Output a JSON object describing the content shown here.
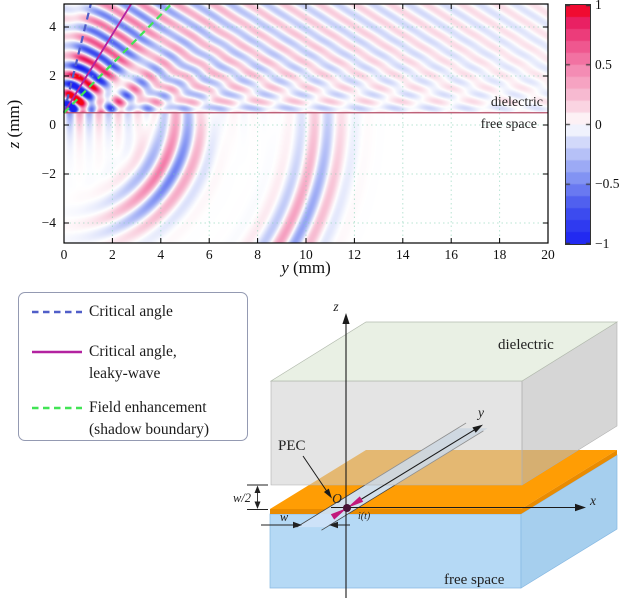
{
  "figure": {
    "plot": {
      "xlabel": {
        "var": "y",
        "unit": " (mm)"
      },
      "ylabel": {
        "var": "z",
        "unit": " (mm)"
      },
      "x_ticks": {
        "values": [
          0,
          2,
          4,
          6,
          8,
          10,
          12,
          14,
          16,
          18,
          20
        ],
        "labels": [
          "0",
          "2",
          "4",
          "6",
          "8",
          "10",
          "12",
          "14",
          "16",
          "18",
          "20"
        ]
      },
      "z_ticks": {
        "values": [
          4,
          2,
          0,
          -2,
          -4
        ],
        "labels": [
          "4",
          "2",
          "0",
          "−2",
          "−4"
        ]
      },
      "region_labels": {
        "upper": "dielectric",
        "lower": "free space"
      },
      "grid_color": "rgba(125,205,175,0.55)",
      "interface_line_color": "#b54f68"
    },
    "colorbar": {
      "tick_values": [
        1,
        0.5,
        0,
        -0.5,
        -1
      ],
      "tick_labels": [
        "1",
        "0.5",
        "0",
        "−0.5",
        "−1"
      ]
    },
    "legend": {
      "items": [
        {
          "label_lines": [
            "Critical angle"
          ],
          "color": "#505ec8",
          "style": "dashed"
        },
        {
          "label_lines": [
            "Critical angle,",
            "leaky-wave"
          ],
          "color": "#b322a0",
          "style": "solid"
        },
        {
          "label_lines": [
            "Field enhancement",
            "(shadow boundary)"
          ],
          "color": "#41e455",
          "style": "dashed"
        }
      ]
    },
    "diagram": {
      "labels": {
        "z_axis": "z",
        "y_axis": "y",
        "x_axis": "x",
        "origin": "O",
        "source": "i(t)",
        "pec": "PEC",
        "w_half": "w/2",
        "w": "w",
        "dielectric": "dielectric",
        "free_space": "free space"
      },
      "colors": {
        "pec_top": "#ff9d04",
        "pec_edge": "#e98b00",
        "free_space_front": "#b5d9f5",
        "free_space_side": "#a6cfee",
        "dielectric_top": "#e9f0e4",
        "dielectric_front": "rgba(205,205,205,0.55)",
        "dielectric_side": "rgba(186,186,186,0.60)",
        "slot": "#cfe3f8",
        "source": "#c2187c"
      }
    }
  },
  "chart_data": {
    "type": "heatmap",
    "title": "",
    "xlabel": "y (mm)",
    "ylabel": "z (mm)",
    "x_range": [
      0,
      20
    ],
    "z_range": [
      -5,
      5
    ],
    "grid": true,
    "colorbar_range": [
      -1,
      1
    ],
    "colorbar_ticks": [
      1,
      0.5,
      0,
      -0.5,
      -1
    ],
    "interface": {
      "z_mm": 0.5,
      "upper_label": "dielectric",
      "lower_label": "free space"
    },
    "overlay_lines": [
      {
        "name": "Critical angle",
        "style": "dashed",
        "color": "#505ec8",
        "origin_mm": [
          0,
          0.5
        ],
        "angle_deg_from_z": 14,
        "width": 2.2
      },
      {
        "name": "Critical angle, leaky-wave",
        "style": "solid",
        "color": "#b322a0",
        "origin_mm": [
          0,
          0.5
        ],
        "angle_deg_from_z": 32,
        "width": 1.8
      },
      {
        "name": "Field enhancement (shadow boundary)",
        "style": "dashed",
        "color": "#41e455",
        "origin_mm": [
          0,
          0.5
        ],
        "angle_deg_from_z": 45,
        "width": 2.2
      }
    ],
    "field_model": {
      "interface_z_mm": 0.5,
      "lambda_dielectric_mm": 0.78,
      "lambda_freespace_mm": 1.15,
      "leaky_angle_rad": 0.56,
      "freespace_arc_radii_mm": [
        4.9,
        10.7
      ],
      "colormap_stops": [
        [
          -1,
          "#1c22f2"
        ],
        [
          -0.7,
          "#4353ee"
        ],
        [
          -0.45,
          "#8293f3"
        ],
        [
          -0.2,
          "#c3ccf8"
        ],
        [
          0,
          "#ffffff"
        ],
        [
          0.2,
          "#f8c6d8"
        ],
        [
          0.45,
          "#f48cb4"
        ],
        [
          0.7,
          "#ee4a86"
        ],
        [
          0.88,
          "#e8175c"
        ],
        [
          1,
          "#f60313"
        ]
      ]
    }
  }
}
